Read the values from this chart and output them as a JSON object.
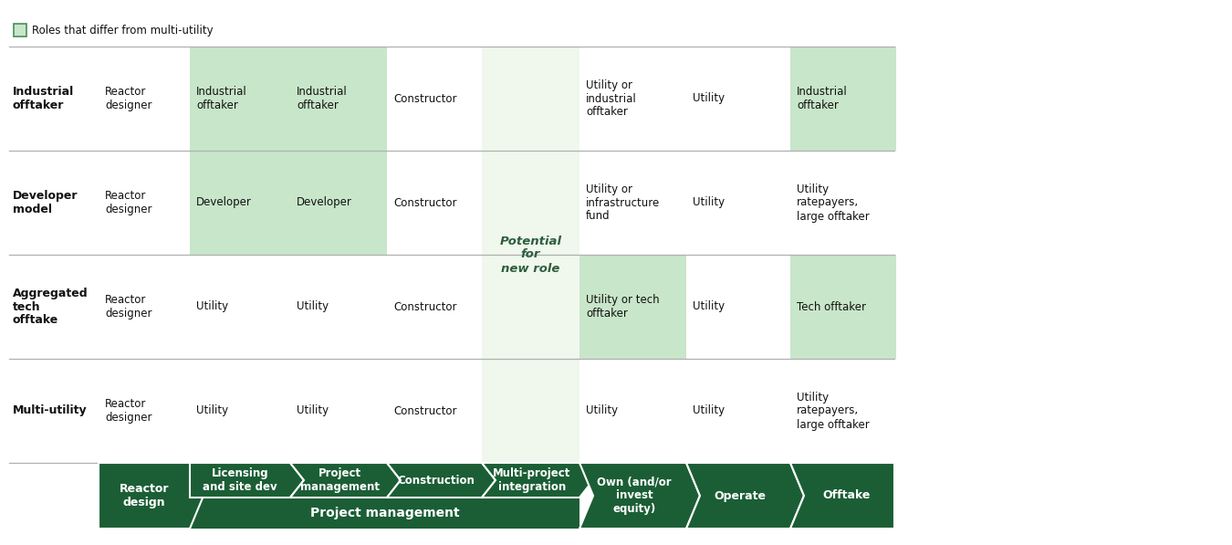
{
  "dark_green": "#1b5e35",
  "light_green_cell": "#c8e6c9",
  "potential_bg": "#f0f7ed",
  "white": "#ffffff",
  "legend_text": "Roles that differ from multi-utility",
  "rows_data": [
    {
      "label": "Multi-utility",
      "cells": [
        {
          "col": 1,
          "text": "Reactor\ndesigner",
          "hl": false
        },
        {
          "col": 2,
          "text": "Utility",
          "hl": false
        },
        {
          "col": 3,
          "text": "Utility",
          "hl": false
        },
        {
          "col": 4,
          "text": "Constructor",
          "hl": false
        },
        {
          "col": 6,
          "text": "Utility",
          "hl": false
        },
        {
          "col": 7,
          "text": "Utility",
          "hl": false
        },
        {
          "col": 8,
          "text": "Utility\nratepayers,\nlarge offtaker",
          "hl": false
        }
      ]
    },
    {
      "label": "Aggregated\ntech\nofftake",
      "cells": [
        {
          "col": 1,
          "text": "Reactor\ndesigner",
          "hl": false
        },
        {
          "col": 2,
          "text": "Utility",
          "hl": false
        },
        {
          "col": 3,
          "text": "Utility",
          "hl": false
        },
        {
          "col": 4,
          "text": "Constructor",
          "hl": false
        },
        {
          "col": 6,
          "text": "Utility or tech\nofftaker",
          "hl": true
        },
        {
          "col": 7,
          "text": "Utility",
          "hl": false
        },
        {
          "col": 8,
          "text": "Tech offtaker",
          "hl": true
        }
      ]
    },
    {
      "label": "Developer\nmodel",
      "cells": [
        {
          "col": 1,
          "text": "Reactor\ndesigner",
          "hl": false
        },
        {
          "col": 2,
          "text": "Developer",
          "hl": true
        },
        {
          "col": 3,
          "text": "Developer",
          "hl": true
        },
        {
          "col": 4,
          "text": "Constructor",
          "hl": false
        },
        {
          "col": 6,
          "text": "Utility or\ninfrastructure\nfund",
          "hl": false
        },
        {
          "col": 7,
          "text": "Utility",
          "hl": false
        },
        {
          "col": 8,
          "text": "Utility\nratepayers,\nlarge offtaker",
          "hl": false
        }
      ]
    },
    {
      "label": "Industrial\nofftaker",
      "cells": [
        {
          "col": 1,
          "text": "Reactor\ndesigner",
          "hl": false
        },
        {
          "col": 2,
          "text": "Industrial\nofftaker",
          "hl": true
        },
        {
          "col": 3,
          "text": "Industrial\nofftaker",
          "hl": true
        },
        {
          "col": 4,
          "text": "Constructor",
          "hl": false
        },
        {
          "col": 6,
          "text": "Utility or\nindustrial\nofftaker",
          "hl": false
        },
        {
          "col": 7,
          "text": "Utility",
          "hl": false
        },
        {
          "col": 8,
          "text": "Industrial\nofftaker",
          "hl": true
        }
      ]
    }
  ]
}
